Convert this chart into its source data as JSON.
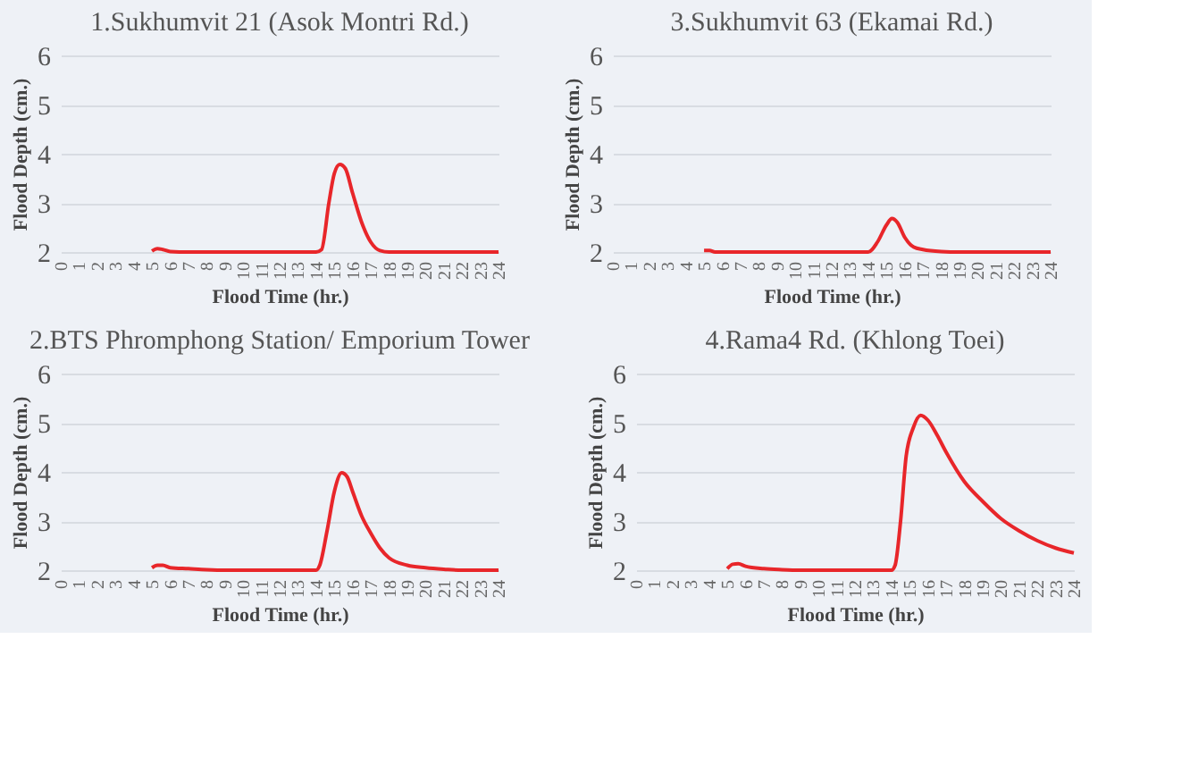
{
  "chart_data": [
    {
      "type": "line",
      "title": "1.Sukhumvit 21 (Asok Montri Rd.)",
      "xlabel": "Flood Time (hr.)",
      "ylabel": "Flood Depth (cm.)",
      "xlim": [
        0,
        24
      ],
      "xticks": [
        0,
        1,
        2,
        3,
        4,
        5,
        6,
        7,
        8,
        9,
        10,
        11,
        12,
        13,
        14,
        15,
        16,
        17,
        18,
        19,
        20,
        21,
        22,
        23,
        24
      ],
      "ylim": [
        2,
        6
      ],
      "yticks": [
        2,
        3,
        4,
        5,
        6
      ],
      "grid": "y",
      "series": [
        {
          "color": "#e8262a",
          "x": [
            5,
            5.3,
            5.6,
            6,
            7,
            14,
            14.3,
            14.7,
            15,
            15.3,
            15.6,
            16,
            16.5,
            17,
            17.5,
            18,
            24
          ],
          "values": [
            2.02,
            2.07,
            2.05,
            2.01,
            2,
            2,
            2.05,
            3.0,
            3.6,
            3.78,
            3.7,
            3.2,
            2.6,
            2.2,
            2.03,
            2,
            2
          ]
        }
      ]
    },
    {
      "type": "line",
      "title": "3.Sukhumvit 63 (Ekamai Rd.)",
      "xlabel": "Flood Time (hr.)",
      "ylabel": "Flood Depth (cm.)",
      "xlim": [
        0,
        24
      ],
      "xticks": [
        0,
        1,
        2,
        3,
        4,
        5,
        6,
        7,
        8,
        9,
        10,
        11,
        12,
        13,
        14,
        15,
        16,
        17,
        18,
        19,
        20,
        21,
        22,
        23,
        24
      ],
      "ylim": [
        2,
        6
      ],
      "yticks": [
        2,
        3,
        4,
        5,
        6
      ],
      "grid": "y",
      "series": [
        {
          "color": "#e8262a",
          "x": [
            5,
            5.3,
            5.6,
            14,
            14.5,
            15,
            15.3,
            15.6,
            16,
            16.5,
            17,
            18,
            19,
            24
          ],
          "values": [
            2.03,
            2.03,
            2.0,
            2,
            2.2,
            2.55,
            2.68,
            2.6,
            2.3,
            2.1,
            2.05,
            2.01,
            2,
            2
          ]
        }
      ]
    },
    {
      "type": "line",
      "title": "2.BTS Phromphong Station/ Emporium Tower",
      "xlabel": "Flood Time (hr.)",
      "ylabel": "Flood Depth (cm.)",
      "xlim": [
        0,
        24
      ],
      "xticks": [
        0,
        1,
        2,
        3,
        4,
        5,
        6,
        7,
        8,
        9,
        10,
        11,
        12,
        13,
        14,
        15,
        16,
        17,
        18,
        19,
        20,
        21,
        22,
        23,
        24
      ],
      "ylim": [
        2,
        6
      ],
      "yticks": [
        2,
        3,
        4,
        5,
        6
      ],
      "grid": "y",
      "series": [
        {
          "color": "#e8262a",
          "x": [
            5,
            5.3,
            5.6,
            6,
            7,
            8,
            9,
            14,
            14.2,
            14.6,
            15,
            15.4,
            15.7,
            16,
            16.5,
            17,
            17.5,
            18,
            19,
            20,
            21,
            22,
            24
          ],
          "values": [
            2.05,
            2.1,
            2.1,
            2.05,
            2.03,
            2.01,
            2,
            2,
            2.1,
            2.8,
            3.6,
            3.98,
            3.9,
            3.6,
            3.1,
            2.75,
            2.45,
            2.25,
            2.1,
            2.05,
            2.02,
            2,
            2
          ]
        }
      ]
    },
    {
      "type": "line",
      "title": "4.Rama4 Rd. (Khlong Toei)",
      "xlabel": "Flood Time (hr.)",
      "ylabel": "Flood Depth (cm.)",
      "xlim": [
        0,
        24
      ],
      "xticks": [
        0,
        1,
        2,
        3,
        4,
        5,
        6,
        7,
        8,
        9,
        10,
        11,
        12,
        13,
        14,
        15,
        16,
        17,
        18,
        19,
        20,
        21,
        22,
        23,
        24
      ],
      "ylim": [
        2,
        6
      ],
      "yticks": [
        2,
        3,
        4,
        5,
        6
      ],
      "grid": "y",
      "series": [
        {
          "color": "#e8262a",
          "x": [
            5,
            5.3,
            5.6,
            6,
            7,
            8,
            9,
            14,
            14.2,
            14.5,
            14.8,
            15.2,
            15.6,
            16,
            16.5,
            17,
            18,
            19,
            20,
            21,
            22,
            23,
            24
          ],
          "values": [
            2.03,
            2.12,
            2.13,
            2.08,
            2.03,
            2.01,
            2,
            2,
            2.1,
            3.0,
            4.3,
            4.9,
            5.15,
            5.05,
            4.75,
            4.4,
            3.8,
            3.4,
            3.05,
            2.8,
            2.6,
            2.45,
            2.35
          ]
        }
      ]
    }
  ]
}
